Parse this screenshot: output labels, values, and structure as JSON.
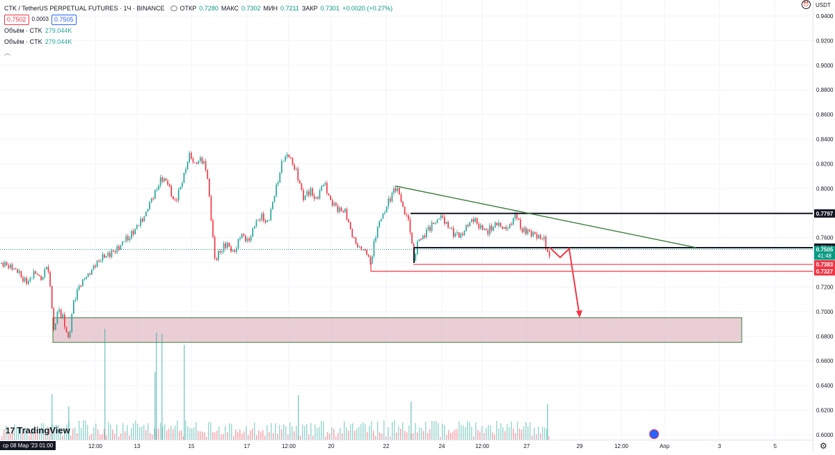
{
  "header": {
    "symbol": "CTK / TetherUS PERPETUAL FUTURES · 1Ч · BINANCE",
    "open_label": "ОТКР",
    "open": "0.7280",
    "high_label": "МАКС",
    "high": "0.7302",
    "low_label": "МИН",
    "low": "0.7211",
    "close_label": "ЗАКР",
    "close": "0.7301",
    "change": "+0.0020 (+0.27%)",
    "bid": "0.7502",
    "spread": "0.0003",
    "ask": "0.7505"
  },
  "volume_rows": [
    {
      "label": "Объём · CTK",
      "value": "279.044K"
    },
    {
      "label": "Объём · CTK",
      "value": "279.044K"
    }
  ],
  "currency": "USDT",
  "logo_text": "TradingView",
  "date_badge": "ср 08 Мар '23   01:00",
  "colors": {
    "up": "#26a69a",
    "down": "#f23645",
    "trend": "#3a7d3a",
    "zone": "#d9a6b4",
    "line": "#131722"
  },
  "chart_data": {
    "type": "candlestick",
    "title": "CTK / TetherUS PERPETUAL FUTURES · 1Ч · BINANCE",
    "ylim": [
      0.596,
      0.953
    ],
    "y_ticks": [
      "0.9400",
      "0.9200",
      "0.9000",
      "0.8800",
      "0.8600",
      "0.8400",
      "0.8200",
      "0.8000",
      "0.7800",
      "0.7600",
      "0.7400",
      "0.7200",
      "0.7000",
      "0.6800",
      "0.6600",
      "0.6400",
      "0.6200",
      "0.6000"
    ],
    "x_ticks": [
      "12:00",
      "13",
      "15",
      "17",
      "12:00",
      "20",
      "22",
      "24",
      "12:00",
      "27",
      "29",
      "12:00",
      "Апр",
      "3",
      "5"
    ],
    "price_path": [
      [
        0,
        0.739
      ],
      [
        10,
        0.738
      ],
      [
        20,
        0.735
      ],
      [
        30,
        0.728
      ],
      [
        40,
        0.723
      ],
      [
        50,
        0.732
      ],
      [
        60,
        0.726
      ],
      [
        66,
        0.737
      ],
      [
        72,
        0.72
      ],
      [
        76,
        0.682
      ],
      [
        82,
        0.7
      ],
      [
        90,
        0.695
      ],
      [
        98,
        0.676
      ],
      [
        104,
        0.708
      ],
      [
        112,
        0.718
      ],
      [
        120,
        0.728
      ],
      [
        128,
        0.731
      ],
      [
        140,
        0.742
      ],
      [
        155,
        0.746
      ],
      [
        170,
        0.752
      ],
      [
        185,
        0.762
      ],
      [
        200,
        0.771
      ],
      [
        210,
        0.782
      ],
      [
        218,
        0.792
      ],
      [
        225,
        0.802
      ],
      [
        232,
        0.808
      ],
      [
        240,
        0.805
      ],
      [
        250,
        0.788
      ],
      [
        258,
        0.8
      ],
      [
        266,
        0.818
      ],
      [
        272,
        0.828
      ],
      [
        280,
        0.82
      ],
      [
        288,
        0.823
      ],
      [
        296,
        0.817
      ],
      [
        302,
        0.78
      ],
      [
        308,
        0.74
      ],
      [
        315,
        0.75
      ],
      [
        325,
        0.755
      ],
      [
        335,
        0.748
      ],
      [
        345,
        0.763
      ],
      [
        355,
        0.757
      ],
      [
        365,
        0.77
      ],
      [
        375,
        0.778
      ],
      [
        385,
        0.773
      ],
      [
        395,
        0.798
      ],
      [
        405,
        0.822
      ],
      [
        415,
        0.826
      ],
      [
        425,
        0.814
      ],
      [
        435,
        0.793
      ],
      [
        445,
        0.798
      ],
      [
        455,
        0.792
      ],
      [
        465,
        0.805
      ],
      [
        475,
        0.789
      ],
      [
        485,
        0.783
      ],
      [
        495,
        0.782
      ],
      [
        505,
        0.762
      ],
      [
        515,
        0.752
      ],
      [
        525,
        0.748
      ],
      [
        532,
        0.74
      ],
      [
        540,
        0.765
      ],
      [
        550,
        0.78
      ],
      [
        560,
        0.792
      ],
      [
        568,
        0.8
      ],
      [
        574,
        0.795
      ],
      [
        580,
        0.78
      ],
      [
        588,
        0.77
      ],
      [
        594,
        0.742
      ],
      [
        600,
        0.758
      ],
      [
        610,
        0.763
      ],
      [
        620,
        0.77
      ],
      [
        630,
        0.776
      ],
      [
        640,
        0.773
      ],
      [
        650,
        0.764
      ],
      [
        660,
        0.76
      ],
      [
        670,
        0.77
      ],
      [
        680,
        0.776
      ],
      [
        690,
        0.768
      ],
      [
        700,
        0.765
      ],
      [
        710,
        0.771
      ],
      [
        720,
        0.768
      ],
      [
        730,
        0.77
      ],
      [
        742,
        0.778
      ],
      [
        750,
        0.766
      ],
      [
        760,
        0.764
      ],
      [
        770,
        0.762
      ],
      [
        780,
        0.76
      ],
      [
        785,
        0.75
      ],
      [
        790,
        0.74
      ]
    ],
    "volumes": [
      [
        74,
        0.633
      ],
      [
        98,
        0.623
      ],
      [
        150,
        0.686
      ],
      [
        224,
        0.683
      ],
      [
        232,
        0.682
      ],
      [
        264,
        0.673
      ],
      [
        222,
        0.651
      ],
      [
        428,
        0.632
      ],
      [
        590,
        0.627
      ],
      [
        786,
        0.625
      ]
    ],
    "levels": [
      {
        "name": "resistance",
        "price": 0.7797,
        "label": "0.7797",
        "color": "#131722"
      },
      {
        "name": "support",
        "price": 0.7519,
        "label": "0.7519",
        "color": "#131722"
      },
      {
        "name": "red-level-1",
        "price": 0.7383,
        "label": "0.7383",
        "color": "#f23645"
      },
      {
        "name": "red-level-2",
        "price": 0.7327,
        "label": "0.7327",
        "color": "#f23645"
      }
    ],
    "current_price": {
      "price": "0.7505",
      "timer": "41:48",
      "color": "#089981"
    },
    "zone": {
      "top": 0.695,
      "bottom": 0.675
    },
    "trendline": [
      [
        568,
        0.802
      ],
      [
        1000,
        0.752
      ]
    ],
    "projection": [
      [
        790,
        0.752
      ],
      [
        805,
        0.744
      ],
      [
        818,
        0.751
      ],
      [
        833,
        0.696
      ]
    ]
  }
}
